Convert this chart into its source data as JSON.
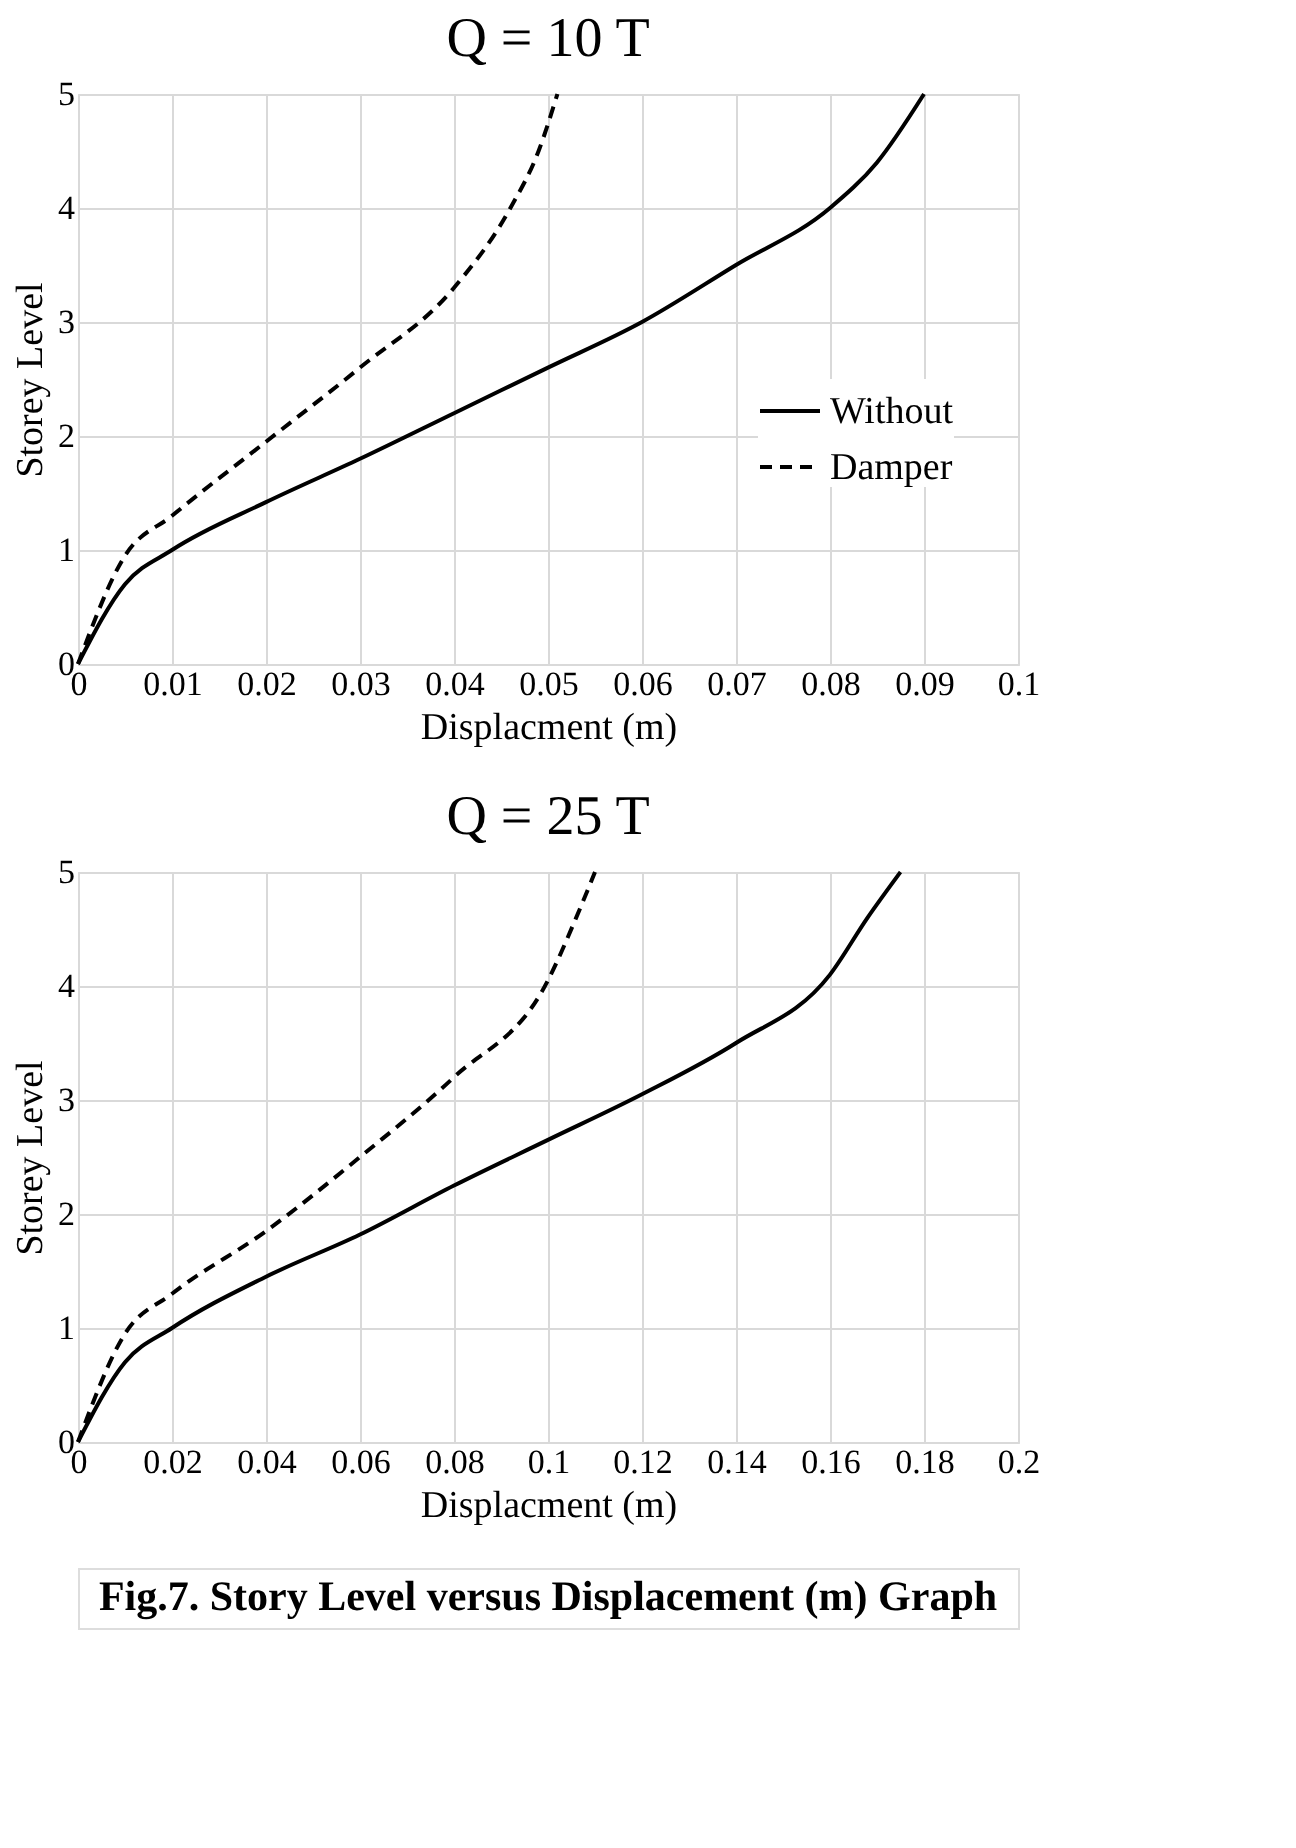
{
  "chart_data": [
    {
      "type": "line",
      "title": "Q = 10 T",
      "xlabel": "Displacment (m)",
      "ylabel": "Storey Level",
      "xlim": [
        0,
        0.1
      ],
      "xticks": [
        0,
        0.01,
        0.02,
        0.03,
        0.04,
        0.05,
        0.06,
        0.07,
        0.08,
        0.09,
        0.1
      ],
      "ylim": [
        0,
        5
      ],
      "yticks": [
        0,
        1,
        2,
        3,
        4,
        5
      ],
      "grid": true,
      "legend": "right",
      "marker": "none",
      "series": [
        {
          "name": "Without",
          "color": "#000000",
          "line_style": "solid",
          "x": [
            0,
            0.005,
            0.01,
            0.02,
            0.03,
            0.04,
            0.05,
            0.06,
            0.07,
            0.08,
            0.085,
            0.09
          ],
          "values": [
            0,
            0.7,
            1,
            1.42,
            1.8,
            2.2,
            2.6,
            3,
            3.5,
            4,
            4.4,
            5
          ]
        },
        {
          "name": "Damper",
          "color": "#000000",
          "line_style": "dashed",
          "x": [
            0,
            0.005,
            0.01,
            0.02,
            0.03,
            0.04,
            0.046,
            0.049,
            0.051
          ],
          "values": [
            0,
            0.95,
            1.3,
            1.95,
            2.6,
            3.3,
            4,
            4.5,
            5
          ]
        }
      ]
    },
    {
      "type": "line",
      "title": "Q = 25 T",
      "xlabel": "Displacment (m)",
      "ylabel": "Storey Level",
      "xlim": [
        0,
        0.2
      ],
      "xticks": [
        0,
        0.02,
        0.04,
        0.06,
        0.08,
        0.1,
        0.12,
        0.14,
        0.16,
        0.18,
        0.2
      ],
      "ylim": [
        0,
        5
      ],
      "yticks": [
        0,
        1,
        2,
        3,
        4,
        5
      ],
      "grid": true,
      "legend": "right",
      "marker": "none",
      "annotations": [
        "Fig.7. Story Level versus Displacement (m) Graph"
      ],
      "series": [
        {
          "name": "Without",
          "color": "#000000",
          "line_style": "solid",
          "x": [
            0,
            0.01,
            0.02,
            0.04,
            0.06,
            0.08,
            0.1,
            0.12,
            0.14,
            0.16,
            0.168,
            0.175
          ],
          "values": [
            0,
            0.7,
            1,
            1.45,
            1.82,
            2.25,
            2.65,
            3.05,
            3.5,
            4.1,
            4.6,
            5
          ]
        },
        {
          "name": "Damper",
          "color": "#000000",
          "line_style": "dashed",
          "x": [
            0,
            0.01,
            0.02,
            0.04,
            0.06,
            0.08,
            0.1,
            0.106,
            0.11
          ],
          "values": [
            0,
            0.95,
            1.3,
            1.85,
            2.5,
            3.2,
            4.05,
            4.6,
            5
          ]
        }
      ]
    }
  ]
}
